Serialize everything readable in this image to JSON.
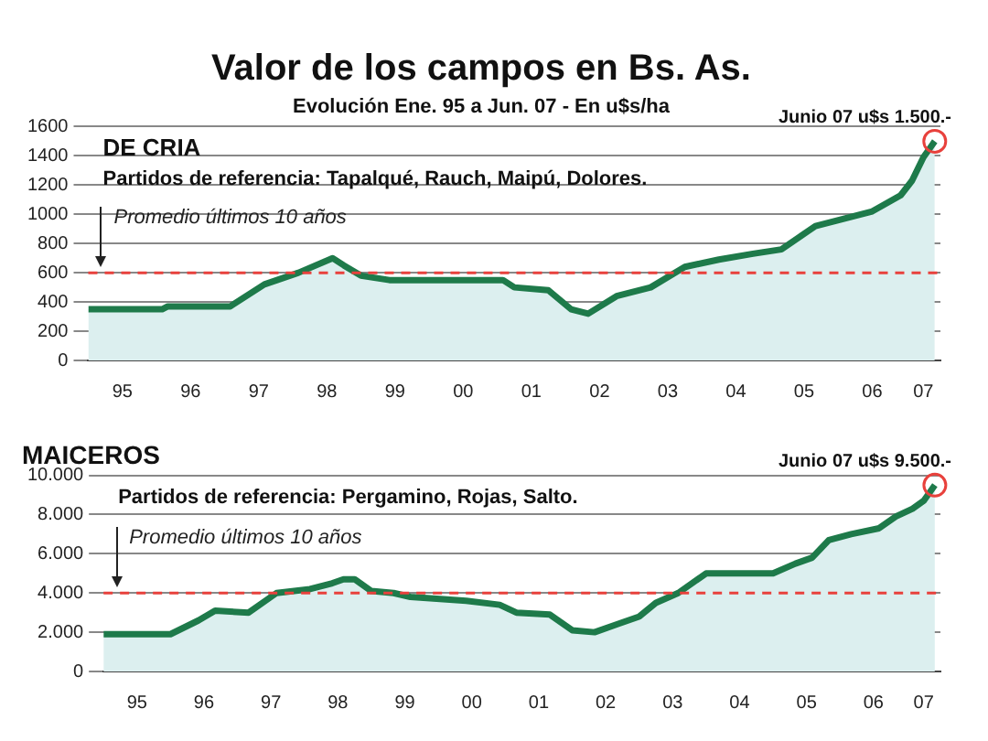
{
  "chart_data": [
    {
      "type": "area",
      "title": "Valor de los campos en Bs. As.",
      "subtitle": "Evolución Ene. 95 a Jun. 07 - En u$s/ha",
      "annotations": [
        "DE CRIA",
        "Partidos de referencia: Tapalqué, Rauch, Maipú, Dolores.",
        {
          "text": "Junio 07 u$s 1.500.-",
          "x": "2007-06",
          "y": 1500
        }
      ],
      "series": [
        {
          "color": "#1e7a4a",
          "x": [
            "1995-01",
            "1996-02",
            "1996-03",
            "1997-02",
            "1997-08",
            "1998-02",
            "1998-08",
            "1998-10",
            "1999-01",
            "1999-06",
            "2001-02",
            "2001-04",
            "2001-10",
            "2002-02",
            "2002-05",
            "2002-10",
            "2003-04",
            "2003-10",
            "2004-04",
            "2004-10",
            "2005-03",
            "2005-06",
            "2005-09",
            "2006-02",
            "2006-07",
            "2006-12",
            "2007-02",
            "2007-04",
            "2007-06"
          ],
          "values": [
            350,
            350,
            370,
            370,
            520,
            600,
            700,
            650,
            580,
            550,
            550,
            500,
            480,
            350,
            320,
            440,
            500,
            640,
            690,
            730,
            760,
            840,
            920,
            970,
            1020,
            1130,
            1230,
            1390,
            1500
          ]
        }
      ],
      "marker": "none",
      "xlim": [
        "1995-01",
        "2007-07"
      ],
      "xticks": [
        {
          "value": "1995-07",
          "label": "95"
        },
        {
          "value": "1996-07",
          "label": "96"
        },
        {
          "value": "1997-07",
          "label": "97"
        },
        {
          "value": "1998-07",
          "label": "98"
        },
        {
          "value": "1999-07",
          "label": "99"
        },
        {
          "value": "2000-07",
          "label": "00"
        },
        {
          "value": "2001-07",
          "label": "01"
        },
        {
          "value": "2002-07",
          "label": "02"
        },
        {
          "value": "2003-07",
          "label": "03"
        },
        {
          "value": "2004-07",
          "label": "04"
        },
        {
          "value": "2005-07",
          "label": "05"
        },
        {
          "value": "2006-07",
          "label": "06"
        },
        {
          "value": "2007-04",
          "label": "07"
        }
      ],
      "ylim": [
        0,
        1600
      ],
      "yticks": [
        0,
        200,
        400,
        600,
        800,
        1000,
        1200,
        1400,
        1600
      ],
      "grid": "y",
      "legend": false,
      "ref_lines": [
        {
          "axis": "y",
          "value": 600,
          "label": "Promedio últimos 10 años",
          "color": "#e8413c",
          "line_style": "dashed"
        }
      ]
    },
    {
      "type": "area",
      "title": "MAICEROS",
      "annotations": [
        "Partidos de referencia: Pergamino, Rojas, Salto.",
        {
          "text": "Junio 07 u$s 9.500.-",
          "x": "2007-06",
          "y": 9500
        }
      ],
      "series": [
        {
          "color": "#1e7a4a",
          "x": [
            "1995-01",
            "1995-06",
            "1996-01",
            "1996-06",
            "1996-09",
            "1997-03",
            "1997-08",
            "1998-02",
            "1998-06",
            "1998-08",
            "1998-10",
            "1999-01",
            "1999-05",
            "1999-08",
            "2000-06",
            "2000-12",
            "2001-03",
            "2001-09",
            "2002-01",
            "2002-05",
            "2002-09",
            "2003-01",
            "2003-04",
            "2003-08",
            "2004-01",
            "2004-05",
            "2005-01",
            "2005-05",
            "2005-08",
            "2005-11",
            "2006-03",
            "2006-08",
            "2006-11",
            "2007-02",
            "2007-04",
            "2007-06"
          ],
          "values": [
            1900,
            1900,
            1900,
            2600,
            3100,
            3000,
            4000,
            4200,
            4500,
            4700,
            4700,
            4100,
            4000,
            3800,
            3600,
            3400,
            3000,
            2900,
            2100,
            2000,
            2400,
            2800,
            3500,
            4000,
            5000,
            5000,
            5000,
            5500,
            5800,
            6700,
            7000,
            7300,
            7900,
            8300,
            8700,
            9500
          ]
        }
      ],
      "marker": "none",
      "xlim": [
        "1995-01",
        "2007-07"
      ],
      "xticks": [
        {
          "value": "1995-07",
          "label": "95"
        },
        {
          "value": "1996-07",
          "label": "96"
        },
        {
          "value": "1997-07",
          "label": "97"
        },
        {
          "value": "1998-07",
          "label": "98"
        },
        {
          "value": "1999-07",
          "label": "99"
        },
        {
          "value": "2000-07",
          "label": "00"
        },
        {
          "value": "2001-07",
          "label": "01"
        },
        {
          "value": "2002-07",
          "label": "02"
        },
        {
          "value": "2003-07",
          "label": "03"
        },
        {
          "value": "2004-07",
          "label": "04"
        },
        {
          "value": "2005-07",
          "label": "05"
        },
        {
          "value": "2006-07",
          "label": "06"
        },
        {
          "value": "2007-04",
          "label": "07"
        }
      ],
      "ylim": [
        0,
        10000
      ],
      "yticks": [
        0,
        {
          "value": 2000,
          "label": "2.000"
        },
        {
          "value": 4000,
          "label": "4.000"
        },
        {
          "value": 6000,
          "label": "6.000"
        },
        {
          "value": 8000,
          "label": "8.000"
        },
        {
          "value": 10000,
          "label": "10.000"
        }
      ],
      "grid": "y",
      "legend": false,
      "ref_lines": [
        {
          "axis": "y",
          "value": 4000,
          "label": "Promedio últimos 10 años",
          "color": "#e8413c",
          "line_style": "dashed"
        }
      ]
    }
  ]
}
